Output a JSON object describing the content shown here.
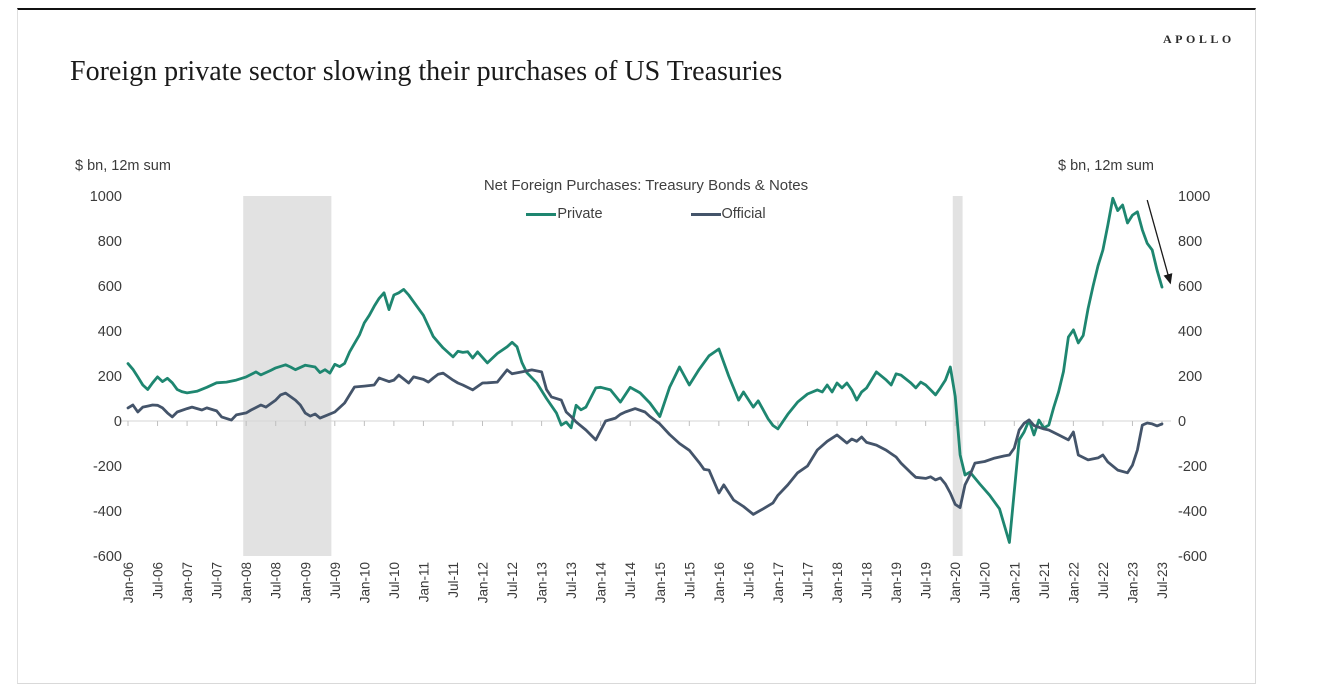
{
  "page": {
    "brand": "APOLLO",
    "title": "Foreign private sector slowing their purchases of US Treasuries"
  },
  "chart_data": {
    "type": "line",
    "title": "Net Foreign Purchases: Treasury Bonds & Notes",
    "left_axis_unit": "$ bn, 12m sum",
    "right_axis_unit": "$ bn, 12m sum",
    "ylim": [
      -600,
      1000
    ],
    "y_ticks": [
      1000,
      800,
      600,
      400,
      200,
      0,
      -200,
      -400,
      -600
    ],
    "grid": "none",
    "legend_position": "top-center",
    "x_unit": "months since Jan-2006, semiannual ticks",
    "x_tick_labels": [
      "Jan-06",
      "Jul-06",
      "Jan-07",
      "Jul-07",
      "Jan-08",
      "Jul-08",
      "Jan-09",
      "Jul-09",
      "Jan-10",
      "Jul-10",
      "Jan-11",
      "Jul-11",
      "Jan-12",
      "Jul-12",
      "Jan-13",
      "Jul-13",
      "Jan-14",
      "Jul-14",
      "Jan-15",
      "Jul-15",
      "Jan-16",
      "Jul-16",
      "Jan-17",
      "Jul-17",
      "Jan-18",
      "Jul-18",
      "Jan-19",
      "Jul-19",
      "Jan-20",
      "Jul-20",
      "Jan-21",
      "Jul-21",
      "Jan-22",
      "Jul-22",
      "Jan-23",
      "Jul-23"
    ],
    "recession_bands_months": [
      [
        23.4,
        41.3
      ],
      [
        167.5,
        169.5
      ]
    ],
    "colors": {
      "private": "#1e8670",
      "official": "#44546a",
      "band": "#e2e2e2",
      "axis_line": "#d6d6d6",
      "tick": "#bfbfbf",
      "text": "#3b3b3b",
      "arrow": "#1a1a1a"
    },
    "annotation_arrow": {
      "from": [
        207,
        982
      ],
      "to": [
        211.7,
        613
      ]
    },
    "series": [
      {
        "name": "Private",
        "color": "#1e8670",
        "points": [
          [
            0,
            255
          ],
          [
            1,
            230
          ],
          [
            2,
            196
          ],
          [
            3,
            160
          ],
          [
            4,
            140
          ],
          [
            5,
            170
          ],
          [
            6,
            196
          ],
          [
            7,
            175
          ],
          [
            8,
            190
          ],
          [
            9,
            170
          ],
          [
            10,
            140
          ],
          [
            11,
            130
          ],
          [
            12,
            125
          ],
          [
            14,
            132
          ],
          [
            16,
            150
          ],
          [
            18,
            170
          ],
          [
            20,
            173
          ],
          [
            22,
            182
          ],
          [
            24,
            196
          ],
          [
            26,
            218
          ],
          [
            27,
            205
          ],
          [
            29,
            225
          ],
          [
            30,
            236
          ],
          [
            32,
            250
          ],
          [
            33,
            240
          ],
          [
            34,
            228
          ],
          [
            36,
            248
          ],
          [
            38,
            240
          ],
          [
            39,
            215
          ],
          [
            40,
            228
          ],
          [
            41,
            213
          ],
          [
            42,
            252
          ],
          [
            43,
            242
          ],
          [
            44,
            256
          ],
          [
            45,
            307
          ],
          [
            46,
            345
          ],
          [
            47,
            382
          ],
          [
            48,
            436
          ],
          [
            49,
            470
          ],
          [
            50,
            510
          ],
          [
            51,
            545
          ],
          [
            52,
            570
          ],
          [
            53,
            495
          ],
          [
            54,
            560
          ],
          [
            55,
            570
          ],
          [
            56,
            585
          ],
          [
            57,
            560
          ],
          [
            58,
            530
          ],
          [
            60,
            470
          ],
          [
            62,
            375
          ],
          [
            63,
            350
          ],
          [
            64,
            325
          ],
          [
            66,
            285
          ],
          [
            67,
            310
          ],
          [
            68,
            305
          ],
          [
            69,
            308
          ],
          [
            70,
            280
          ],
          [
            71,
            307
          ],
          [
            73,
            258
          ],
          [
            75,
            300
          ],
          [
            77,
            330
          ],
          [
            78,
            350
          ],
          [
            79,
            330
          ],
          [
            80,
            260
          ],
          [
            81,
            215
          ],
          [
            83,
            170
          ],
          [
            85,
            100
          ],
          [
            87,
            36
          ],
          [
            88,
            -18
          ],
          [
            89,
            -5
          ],
          [
            90,
            -30
          ],
          [
            91,
            70
          ],
          [
            92,
            50
          ],
          [
            93,
            62
          ],
          [
            95,
            147
          ],
          [
            96,
            150
          ],
          [
            98,
            138
          ],
          [
            100,
            84
          ],
          [
            102,
            150
          ],
          [
            104,
            125
          ],
          [
            106,
            80
          ],
          [
            108,
            20
          ],
          [
            110,
            150
          ],
          [
            112,
            240
          ],
          [
            113,
            200
          ],
          [
            114,
            160
          ],
          [
            116,
            230
          ],
          [
            118,
            290
          ],
          [
            120,
            320
          ],
          [
            122,
            200
          ],
          [
            124,
            93
          ],
          [
            125,
            129
          ],
          [
            127,
            62
          ],
          [
            128,
            90
          ],
          [
            130,
            10
          ],
          [
            131,
            -20
          ],
          [
            132,
            -35
          ],
          [
            134,
            30
          ],
          [
            136,
            84
          ],
          [
            138,
            120
          ],
          [
            140,
            138
          ],
          [
            141,
            129
          ],
          [
            142,
            160
          ],
          [
            143,
            129
          ],
          [
            144,
            169
          ],
          [
            145,
            147
          ],
          [
            146,
            169
          ],
          [
            147,
            138
          ],
          [
            148,
            93
          ],
          [
            149,
            129
          ],
          [
            150,
            147
          ],
          [
            152,
            218
          ],
          [
            154,
            182
          ],
          [
            155,
            160
          ],
          [
            156,
            210
          ],
          [
            157,
            204
          ],
          [
            159,
            169
          ],
          [
            160,
            147
          ],
          [
            161,
            173
          ],
          [
            162,
            160
          ],
          [
            163,
            138
          ],
          [
            164,
            116
          ],
          [
            165,
            147
          ],
          [
            166,
            182
          ],
          [
            167,
            240
          ],
          [
            168,
            110
          ],
          [
            169,
            -150
          ],
          [
            170,
            -240
          ],
          [
            171,
            -227
          ],
          [
            173,
            -280
          ],
          [
            175,
            -330
          ],
          [
            177,
            -390
          ],
          [
            179,
            -540
          ],
          [
            181,
            -84
          ],
          [
            182,
            -49
          ],
          [
            183,
            4
          ],
          [
            184,
            -62
          ],
          [
            185,
            4
          ],
          [
            186,
            -31
          ],
          [
            187,
            -18
          ],
          [
            188,
            60
          ],
          [
            189,
            130
          ],
          [
            190,
            220
          ],
          [
            191,
            373
          ],
          [
            192,
            405
          ],
          [
            193,
            347
          ],
          [
            194,
            380
          ],
          [
            195,
            500
          ],
          [
            196,
            600
          ],
          [
            197,
            690
          ],
          [
            198,
            760
          ],
          [
            199,
            870
          ],
          [
            200,
            990
          ],
          [
            201,
            935
          ],
          [
            202,
            960
          ],
          [
            203,
            880
          ],
          [
            204,
            915
          ],
          [
            205,
            930
          ],
          [
            206,
            850
          ],
          [
            207,
            790
          ],
          [
            208,
            760
          ],
          [
            209,
            670
          ],
          [
            210,
            595
          ]
        ]
      },
      {
        "name": "Official",
        "color": "#44546a",
        "points": [
          [
            0,
            58
          ],
          [
            1,
            71
          ],
          [
            2,
            40
          ],
          [
            3,
            62
          ],
          [
            4,
            66
          ],
          [
            5,
            71
          ],
          [
            6,
            70
          ],
          [
            7,
            58
          ],
          [
            8,
            36
          ],
          [
            9,
            18
          ],
          [
            10,
            40
          ],
          [
            12,
            55
          ],
          [
            13,
            62
          ],
          [
            15,
            49
          ],
          [
            16,
            58
          ],
          [
            18,
            45
          ],
          [
            19,
            18
          ],
          [
            21,
            4
          ],
          [
            22,
            27
          ],
          [
            24,
            36
          ],
          [
            25,
            49
          ],
          [
            27,
            71
          ],
          [
            28,
            62
          ],
          [
            30,
            93
          ],
          [
            31,
            116
          ],
          [
            32,
            124
          ],
          [
            34,
            93
          ],
          [
            35,
            71
          ],
          [
            36,
            35
          ],
          [
            37,
            22
          ],
          [
            38,
            31
          ],
          [
            39,
            13
          ],
          [
            40,
            22
          ],
          [
            42,
            40
          ],
          [
            44,
            80
          ],
          [
            45,
            116
          ],
          [
            46,
            151
          ],
          [
            48,
            155
          ],
          [
            50,
            160
          ],
          [
            51,
            191
          ],
          [
            53,
            175
          ],
          [
            54,
            182
          ],
          [
            55,
            204
          ],
          [
            57,
            169
          ],
          [
            58,
            196
          ],
          [
            60,
            185
          ],
          [
            61,
            173
          ],
          [
            62,
            191
          ],
          [
            63,
            208
          ],
          [
            64,
            213
          ],
          [
            66,
            182
          ],
          [
            67,
            169
          ],
          [
            68,
            160
          ],
          [
            70,
            138
          ],
          [
            72,
            169
          ],
          [
            73,
            170
          ],
          [
            75,
            173
          ],
          [
            77,
            227
          ],
          [
            78,
            210
          ],
          [
            80,
            218
          ],
          [
            82,
            227
          ],
          [
            84,
            218
          ],
          [
            85,
            140
          ],
          [
            86,
            107
          ],
          [
            88,
            93
          ],
          [
            89,
            40
          ],
          [
            90,
            20
          ],
          [
            91,
            -4
          ],
          [
            93,
            -40
          ],
          [
            95,
            -84
          ],
          [
            97,
            0
          ],
          [
            99,
            13
          ],
          [
            100,
            30
          ],
          [
            101,
            40
          ],
          [
            103,
            55
          ],
          [
            105,
            40
          ],
          [
            106,
            20
          ],
          [
            108,
            -13
          ],
          [
            110,
            -60
          ],
          [
            112,
            -100
          ],
          [
            114,
            -130
          ],
          [
            116,
            -185
          ],
          [
            117,
            -215
          ],
          [
            118,
            -218
          ],
          [
            120,
            -320
          ],
          [
            121,
            -284
          ],
          [
            123,
            -351
          ],
          [
            125,
            -380
          ],
          [
            127,
            -415
          ],
          [
            129,
            -390
          ],
          [
            131,
            -364
          ],
          [
            132,
            -330
          ],
          [
            134,
            -284
          ],
          [
            136,
            -230
          ],
          [
            138,
            -200
          ],
          [
            140,
            -129
          ],
          [
            142,
            -90
          ],
          [
            144,
            -62
          ],
          [
            145,
            -80
          ],
          [
            146,
            -98
          ],
          [
            147,
            -80
          ],
          [
            148,
            -90
          ],
          [
            149,
            -71
          ],
          [
            150,
            -95
          ],
          [
            152,
            -107
          ],
          [
            154,
            -130
          ],
          [
            156,
            -160
          ],
          [
            157,
            -187
          ],
          [
            159,
            -230
          ],
          [
            160,
            -250
          ],
          [
            162,
            -255
          ],
          [
            163,
            -248
          ],
          [
            164,
            -262
          ],
          [
            165,
            -253
          ],
          [
            166,
            -280
          ],
          [
            167,
            -320
          ],
          [
            168,
            -370
          ],
          [
            169,
            -385
          ],
          [
            170,
            -284
          ],
          [
            171,
            -240
          ],
          [
            172,
            -187
          ],
          [
            174,
            -180
          ],
          [
            176,
            -165
          ],
          [
            178,
            -155
          ],
          [
            179,
            -151
          ],
          [
            180,
            -120
          ],
          [
            181,
            -40
          ],
          [
            182,
            -10
          ],
          [
            183,
            5
          ],
          [
            184,
            -20
          ],
          [
            186,
            -35
          ],
          [
            187,
            -40
          ],
          [
            189,
            -62
          ],
          [
            191,
            -84
          ],
          [
            192,
            -49
          ],
          [
            193,
            -151
          ],
          [
            195,
            -173
          ],
          [
            197,
            -164
          ],
          [
            198,
            -151
          ],
          [
            199,
            -182
          ],
          [
            201,
            -218
          ],
          [
            203,
            -230
          ],
          [
            204,
            -196
          ],
          [
            205,
            -129
          ],
          [
            206,
            -18
          ],
          [
            207,
            -9
          ],
          [
            208,
            -13
          ],
          [
            209,
            -22
          ],
          [
            210,
            -13
          ]
        ]
      }
    ]
  }
}
